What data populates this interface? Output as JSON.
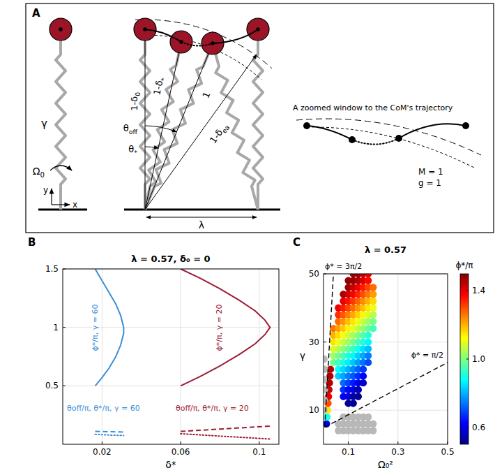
{
  "diagram": {
    "panel_label": "A",
    "spring_stiffness": "γ",
    "spin": {
      "main": "Ω",
      "sub": "0"
    },
    "axis_y": "y",
    "axis_x": "x",
    "leg_apex": {
      "main": "1-δ",
      "sub": "0"
    },
    "leg_star": {
      "main": "1-δ",
      "sub": "*"
    },
    "leg_rest": "1",
    "leg_ea": {
      "main": "1-δ",
      "sub": "ea"
    },
    "angle_off": {
      "main": "θ",
      "sub": "off"
    },
    "angle_star": {
      "main": "θ",
      "sub": "*"
    },
    "step_length": "λ",
    "zoom_title": "A zoomed window to the CoM's trajectory",
    "mass": "M = 1",
    "gravity": "g = 1"
  },
  "chart_data": [
    {
      "type": "line",
      "panel_label": "B",
      "title": "λ = 0.57, δ₀ = 0",
      "xlabel": "δ*",
      "xlim": [
        0,
        0.11
      ],
      "xticks": [
        0.02,
        0.06,
        0.1
      ],
      "ylim": [
        0,
        1.5
      ],
      "yticks": [
        0.5,
        1,
        1.5
      ],
      "grid": true,
      "series": [
        {
          "color": "#3a8fd9",
          "line_style": "solid",
          "x": [
            0.0165,
            0.02,
            0.0235,
            0.027,
            0.0295,
            0.031,
            0.031,
            0.0295,
            0.027,
            0.0235,
            0.02,
            0.0165
          ],
          "values": [
            1.5,
            1.4,
            1.3,
            1.2,
            1.1,
            1.0,
            0.95,
            0.85,
            0.75,
            0.65,
            0.57,
            0.5
          ]
        },
        {
          "color": "#3a8fd9",
          "line_style": "dashed",
          "x": [
            0.0165,
            0.02,
            0.025,
            0.031
          ],
          "values": [
            0.11,
            0.109,
            0.107,
            0.105
          ]
        },
        {
          "color": "#3a8fd9",
          "line_style": "dotted",
          "x": [
            0.0165,
            0.02,
            0.025,
            0.031
          ],
          "values": [
            0.085,
            0.082,
            0.078,
            0.075
          ]
        },
        {
          "color": "#9c1c34",
          "line_style": "solid",
          "x": [
            0.06,
            0.07,
            0.08,
            0.09,
            0.098,
            0.103,
            0.1055,
            0.103,
            0.098,
            0.09,
            0.08,
            0.07,
            0.06
          ],
          "values": [
            1.5,
            1.42,
            1.33,
            1.23,
            1.14,
            1.06,
            1.0,
            0.94,
            0.86,
            0.77,
            0.67,
            0.58,
            0.5
          ]
        },
        {
          "color": "#9c1c34",
          "line_style": "dashed",
          "x": [
            0.06,
            0.07,
            0.08,
            0.09,
            0.1055
          ],
          "values": [
            0.11,
            0.12,
            0.13,
            0.14,
            0.155
          ]
        },
        {
          "color": "#9c1c34",
          "line_style": "dotted",
          "x": [
            0.06,
            0.07,
            0.08,
            0.09,
            0.1055
          ],
          "values": [
            0.09,
            0.08,
            0.07,
            0.06,
            0.045
          ]
        }
      ],
      "annotations": [
        {
          "text": "ϕ*/π, γ = 60",
          "color": "#3a8fd9"
        },
        {
          "text": "ϕ*/π, γ = 20",
          "color": "#9c1c34"
        },
        {
          "text": "θoff/π, θ*/π, γ = 60",
          "color": "#3a8fd9"
        },
        {
          "text": "θoff/π, θ*/π, γ = 20",
          "color": "#9c1c34"
        }
      ]
    },
    {
      "type": "scatter",
      "panel_label": "C",
      "title": "λ = 0.57",
      "xlabel": "Ω₀²",
      "ylabel": "γ",
      "xlim": [
        0,
        0.5
      ],
      "xticks": [
        0.1,
        0.3,
        0.5
      ],
      "ylim": [
        0,
        50
      ],
      "yticks": [
        10,
        30,
        50
      ],
      "grid": true,
      "series": [
        {
          "marker": "circle",
          "x": [
            0.012,
            0.014,
            0.016,
            0.018,
            0.02,
            0.022,
            0.024,
            0.026,
            0.028,
            0.1,
            0.12,
            0.08,
            0.1,
            0.12,
            0.14,
            0.08,
            0.1,
            0.12,
            0.14,
            0.08,
            0.1,
            0.12,
            0.14,
            0.16,
            0.06,
            0.08,
            0.1,
            0.12,
            0.14,
            0.16,
            0.06,
            0.08,
            0.1,
            0.12,
            0.14,
            0.16,
            0.04,
            0.06,
            0.08,
            0.1,
            0.12,
            0.14,
            0.16,
            0.18,
            0.04,
            0.06,
            0.08,
            0.1,
            0.12,
            0.14,
            0.16,
            0.18,
            0.04,
            0.06,
            0.08,
            0.1,
            0.12,
            0.14,
            0.16,
            0.18,
            0.04,
            0.06,
            0.08,
            0.1,
            0.12,
            0.14,
            0.16,
            0.18,
            0.04,
            0.06,
            0.08,
            0.1,
            0.12,
            0.14,
            0.16,
            0.18,
            0.04,
            0.06,
            0.08,
            0.1,
            0.12,
            0.14,
            0.16,
            0.18,
            0.2,
            0.06,
            0.08,
            0.1,
            0.12,
            0.14,
            0.16,
            0.18,
            0.2,
            0.06,
            0.08,
            0.1,
            0.12,
            0.14,
            0.16,
            0.18,
            0.2,
            0.06,
            0.08,
            0.1,
            0.12,
            0.14,
            0.16,
            0.18,
            0.2,
            0.08,
            0.1,
            0.12,
            0.14,
            0.16,
            0.18,
            0.2,
            0.08,
            0.1,
            0.12,
            0.14,
            0.16,
            0.18,
            0.2,
            0.1,
            0.12,
            0.14,
            0.16,
            0.18,
            0.2,
            0.1,
            0.12,
            0.14,
            0.16,
            0.18,
            0.12,
            0.14,
            0.16,
            0.18
          ],
          "values": [
            6,
            8,
            10,
            12,
            14,
            16,
            18,
            20,
            22,
            12,
            12,
            14,
            14,
            14,
            14,
            16,
            16,
            16,
            16,
            18,
            18,
            18,
            18,
            18,
            20,
            20,
            20,
            20,
            20,
            20,
            22,
            22,
            22,
            22,
            22,
            22,
            24,
            24,
            24,
            24,
            24,
            24,
            24,
            24,
            26,
            26,
            26,
            26,
            26,
            26,
            26,
            26,
            28,
            28,
            28,
            28,
            28,
            28,
            28,
            28,
            30,
            30,
            30,
            30,
            30,
            30,
            30,
            30,
            32,
            32,
            32,
            32,
            32,
            32,
            32,
            32,
            34,
            34,
            34,
            34,
            34,
            34,
            34,
            34,
            34,
            36,
            36,
            36,
            36,
            36,
            36,
            36,
            36,
            38,
            38,
            38,
            38,
            38,
            38,
            38,
            38,
            40,
            40,
            40,
            40,
            40,
            40,
            40,
            40,
            42,
            42,
            42,
            42,
            42,
            42,
            42,
            44,
            44,
            44,
            44,
            44,
            44,
            44,
            46,
            46,
            46,
            46,
            46,
            46,
            48,
            48,
            48,
            48,
            48,
            50,
            50,
            50,
            50
          ],
          "color_values": [
            0.6,
            0.9,
            1.15,
            1.3,
            1.4,
            1.42,
            1.45,
            1.45,
            1.45,
            0.52,
            0.52,
            0.62,
            0.58,
            0.54,
            0.52,
            0.67,
            0.63,
            0.59,
            0.55,
            0.73,
            0.69,
            0.65,
            0.61,
            0.57,
            0.83,
            0.79,
            0.75,
            0.71,
            0.67,
            0.63,
            0.88,
            0.84,
            0.8,
            0.76,
            0.72,
            0.68,
            0.98,
            0.94,
            0.9,
            0.86,
            0.82,
            0.78,
            0.74,
            0.7,
            1.03,
            0.99,
            0.95,
            0.91,
            0.87,
            0.83,
            0.79,
            0.75,
            1.09,
            1.05,
            1.01,
            0.97,
            0.93,
            0.89,
            0.85,
            0.81,
            1.15,
            1.11,
            1.07,
            1.03,
            0.99,
            0.95,
            0.91,
            0.87,
            1.2,
            1.16,
            1.12,
            1.08,
            1.04,
            1.0,
            0.96,
            0.92,
            1.26,
            1.22,
            1.18,
            1.14,
            1.1,
            1.06,
            1.02,
            0.98,
            0.94,
            1.27,
            1.23,
            1.19,
            1.15,
            1.11,
            1.07,
            1.03,
            0.99,
            1.33,
            1.29,
            1.25,
            1.21,
            1.17,
            1.13,
            1.09,
            1.05,
            1.39,
            1.35,
            1.31,
            1.27,
            1.23,
            1.19,
            1.15,
            1.11,
            1.4,
            1.36,
            1.32,
            1.28,
            1.24,
            1.2,
            1.16,
            1.46,
            1.42,
            1.38,
            1.34,
            1.3,
            1.26,
            1.22,
            1.47,
            1.43,
            1.39,
            1.35,
            1.31,
            1.27,
            1.48,
            1.48,
            1.45,
            1.41,
            1.37,
            1.48,
            1.47,
            1.43,
            1.39
          ]
        },
        {
          "marker": "circle",
          "color": "#b8b8b8",
          "x": [
            0.002,
            0.003,
            0.004,
            0.003,
            0.005,
            0.002,
            0.08,
            0.1,
            0.12,
            0.14,
            0.16,
            0.18,
            0.06,
            0.08,
            0.1,
            0.12,
            0.14,
            0.16,
            0.18,
            0.2,
            0.06,
            0.08,
            0.1,
            0.12,
            0.14,
            0.16,
            0.18,
            0.2
          ],
          "values": [
            10,
            13,
            16,
            19,
            22,
            25,
            8,
            8,
            8,
            8,
            8,
            8,
            6,
            6,
            6,
            6,
            6,
            6,
            6,
            6,
            4,
            4,
            4,
            4,
            4,
            4,
            4,
            4
          ]
        },
        {
          "type": "line",
          "line_style": "dashed",
          "color": "#000000",
          "x": [
            0.005,
            0.04
          ],
          "values": [
            5,
            50
          ]
        },
        {
          "type": "line",
          "line_style": "dashed",
          "color": "#000000",
          "x": [
            0.005,
            0.5
          ],
          "values": [
            5,
            24
          ]
        }
      ],
      "annotations": [
        {
          "text": "ϕ* = 3π/2",
          "color": "#000000"
        },
        {
          "text": "ϕ* = π/2",
          "color": "#000000"
        }
      ],
      "colorbar": {
        "title": "ϕ*/π",
        "lim": [
          0.5,
          1.5
        ],
        "ticks": [
          0.6,
          {
            "value": 1,
            "label": "1.0"
          },
          1.4
        ]
      }
    }
  ]
}
